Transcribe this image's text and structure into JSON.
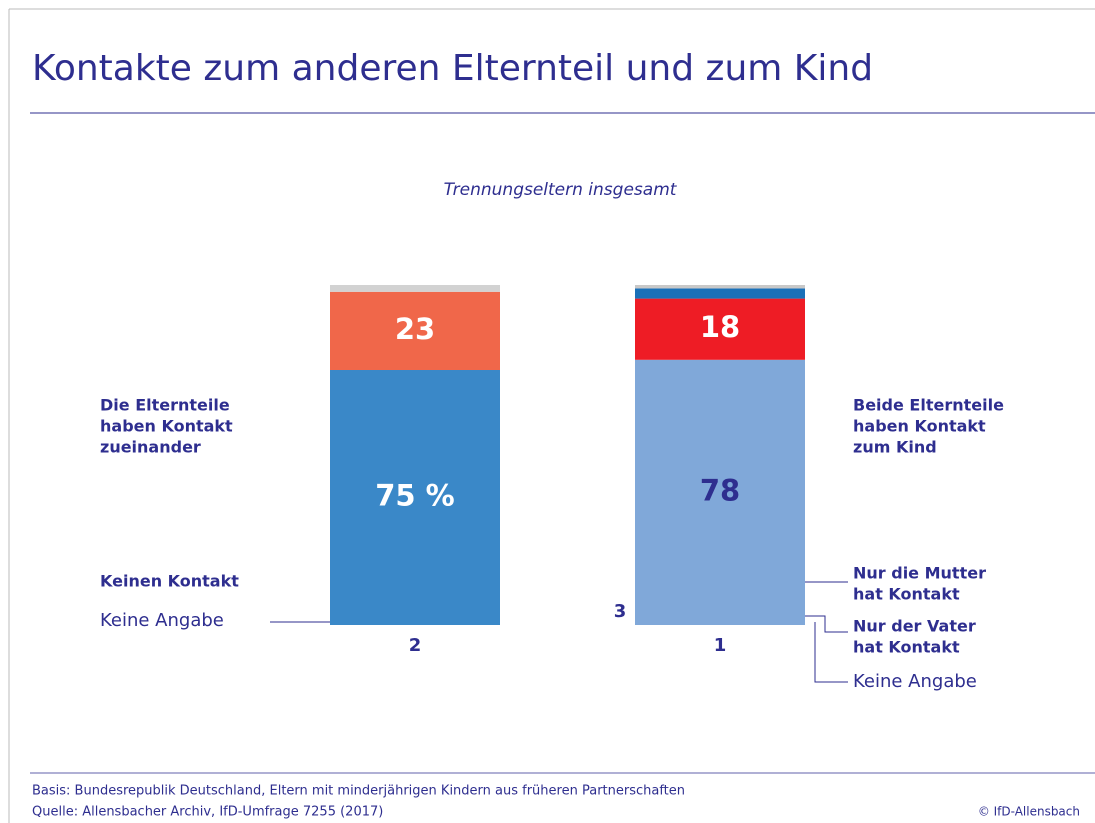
{
  "chart_data": {
    "type": "stacked_bar",
    "title": "Kontakte zum anderen Elternteil und zum Kind",
    "subtitle": "Trennungseltern insgesamt",
    "ylim": [
      0,
      100
    ],
    "bars": [
      {
        "segments": [
          {
            "name": [
              "Die Elternteile",
              "haben Kontakt",
              "zueinander"
            ],
            "value": 75,
            "value_label": "75 %",
            "color": "#3a88c8"
          },
          {
            "name": [
              "Keinen Kontakt"
            ],
            "value": 23,
            "color": "#f0674a"
          },
          {
            "name": [
              "Keine Angabe"
            ],
            "value": 2,
            "color": "#d2d2d2"
          }
        ]
      },
      {
        "segments": [
          {
            "name": [
              "Beide Elternteile",
              "haben Kontakt",
              "zum Kind"
            ],
            "value": 78,
            "color": "#80a8d9"
          },
          {
            "name": [
              "Nur die Mutter",
              "hat Kontakt"
            ],
            "value": 18,
            "color": "#ee1c25"
          },
          {
            "name": [
              "Nur der Vater",
              "hat Kontakt"
            ],
            "value": 3,
            "color": "#1a70b8"
          },
          {
            "name": [
              "Keine Angabe"
            ],
            "value": 1,
            "color": "#c8c8c8"
          }
        ]
      }
    ]
  },
  "footer": {
    "notes": [
      "Basis: Bundesrepublik Deutschland, Eltern mit minderjährigen Kindern aus früheren Partnerschaften",
      "Quelle: Allensbacher Archiv, IfD-Umfrage 7255 (2017)"
    ],
    "copyright": "© IfD-Allensbach"
  }
}
